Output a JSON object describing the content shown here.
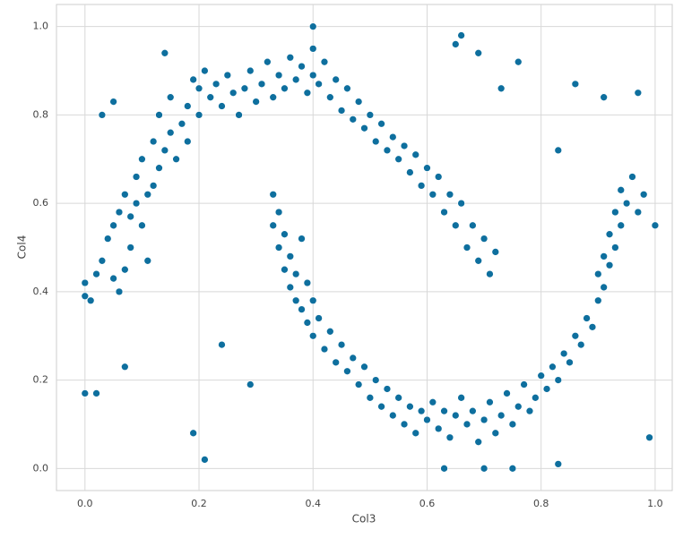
{
  "chart_data": {
    "type": "scatter",
    "x_label": "Col3",
    "y_label": "Col4",
    "color": "#0e6f9e",
    "grid": true,
    "xlim": [
      -0.05,
      1.03
    ],
    "ylim": [
      -0.05,
      1.05
    ],
    "xticks": [
      {
        "value": 0,
        "label": "0.0"
      },
      {
        "value": 0.2,
        "label": "0.2"
      },
      {
        "value": 0.4,
        "label": "0.4"
      },
      {
        "value": 0.6,
        "label": "0.6"
      },
      {
        "value": 0.8,
        "label": "0.8"
      },
      {
        "value": 1,
        "label": "1.0"
      }
    ],
    "yticks": [
      {
        "value": 0,
        "label": "0.0"
      },
      {
        "value": 0.2,
        "label": "0.2"
      },
      {
        "value": 0.4,
        "label": "0.4"
      },
      {
        "value": 0.6,
        "label": "0.6"
      },
      {
        "value": 0.8,
        "label": "0.8"
      },
      {
        "value": 1,
        "label": "1.0"
      }
    ],
    "x": [
      0.0,
      0.0,
      0.01,
      0.02,
      0.03,
      0.04,
      0.05,
      0.05,
      0.06,
      0.06,
      0.07,
      0.07,
      0.08,
      0.08,
      0.09,
      0.09,
      0.1,
      0.1,
      0.11,
      0.11,
      0.12,
      0.12,
      0.13,
      0.13,
      0.14,
      0.15,
      0.15,
      0.16,
      0.17,
      0.18,
      0.18,
      0.19,
      0.2,
      0.2,
      0.21,
      0.22,
      0.23,
      0.24,
      0.25,
      0.26,
      0.27,
      0.28,
      0.29,
      0.3,
      0.31,
      0.32,
      0.33,
      0.34,
      0.35,
      0.36,
      0.37,
      0.38,
      0.39,
      0.4,
      0.4,
      0.41,
      0.42,
      0.43,
      0.44,
      0.45,
      0.46,
      0.47,
      0.48,
      0.49,
      0.5,
      0.51,
      0.52,
      0.53,
      0.54,
      0.55,
      0.56,
      0.57,
      0.58,
      0.59,
      0.6,
      0.61,
      0.62,
      0.63,
      0.64,
      0.65,
      0.66,
      0.67,
      0.68,
      0.69,
      0.7,
      0.71,
      0.72,
      0.33,
      0.33,
      0.34,
      0.34,
      0.35,
      0.35,
      0.36,
      0.36,
      0.37,
      0.37,
      0.38,
      0.38,
      0.39,
      0.39,
      0.4,
      0.4,
      0.41,
      0.42,
      0.43,
      0.44,
      0.45,
      0.46,
      0.47,
      0.48,
      0.49,
      0.5,
      0.51,
      0.52,
      0.53,
      0.54,
      0.55,
      0.56,
      0.57,
      0.58,
      0.59,
      0.6,
      0.61,
      0.62,
      0.63,
      0.64,
      0.65,
      0.66,
      0.67,
      0.68,
      0.69,
      0.7,
      0.71,
      0.72,
      0.73,
      0.74,
      0.75,
      0.76,
      0.77,
      0.78,
      0.79,
      0.8,
      0.81,
      0.82,
      0.83,
      0.84,
      0.85,
      0.86,
      0.87,
      0.88,
      0.89,
      0.9,
      0.9,
      0.91,
      0.91,
      0.92,
      0.92,
      0.93,
      0.93,
      0.94,
      0.94,
      0.95,
      0.96,
      0.97,
      0.98,
      0.0,
      0.02,
      0.03,
      0.07,
      0.19,
      0.21,
      0.24,
      0.29,
      0.65,
      0.66,
      0.69,
      0.73,
      0.76,
      0.86,
      0.91,
      0.97,
      0.99,
      1.0,
      0.83,
      0.63,
      0.4,
      0.05,
      0.14,
      0.83,
      0.75,
      0.7
    ],
    "values": [
      0.39,
      0.42,
      0.38,
      0.44,
      0.47,
      0.52,
      0.55,
      0.43,
      0.4,
      0.58,
      0.45,
      0.62,
      0.5,
      0.57,
      0.6,
      0.66,
      0.55,
      0.7,
      0.62,
      0.47,
      0.64,
      0.74,
      0.68,
      0.8,
      0.72,
      0.76,
      0.84,
      0.7,
      0.78,
      0.82,
      0.74,
      0.88,
      0.8,
      0.86,
      0.9,
      0.84,
      0.87,
      0.82,
      0.89,
      0.85,
      0.8,
      0.86,
      0.9,
      0.83,
      0.87,
      0.92,
      0.84,
      0.89,
      0.86,
      0.93,
      0.88,
      0.91,
      0.85,
      0.95,
      0.89,
      0.87,
      0.92,
      0.84,
      0.88,
      0.81,
      0.86,
      0.79,
      0.83,
      0.77,
      0.8,
      0.74,
      0.78,
      0.72,
      0.75,
      0.7,
      0.73,
      0.67,
      0.71,
      0.64,
      0.68,
      0.62,
      0.66,
      0.58,
      0.62,
      0.55,
      0.6,
      0.5,
      0.55,
      0.47,
      0.52,
      0.44,
      0.49,
      0.62,
      0.55,
      0.58,
      0.5,
      0.53,
      0.45,
      0.48,
      0.41,
      0.44,
      0.38,
      0.52,
      0.36,
      0.42,
      0.33,
      0.38,
      0.3,
      0.34,
      0.27,
      0.31,
      0.24,
      0.28,
      0.22,
      0.25,
      0.19,
      0.23,
      0.16,
      0.2,
      0.14,
      0.18,
      0.12,
      0.16,
      0.1,
      0.14,
      0.08,
      0.13,
      0.11,
      0.15,
      0.09,
      0.13,
      0.07,
      0.12,
      0.16,
      0.1,
      0.13,
      0.06,
      0.11,
      0.15,
      0.08,
      0.12,
      0.17,
      0.1,
      0.14,
      0.19,
      0.13,
      0.16,
      0.21,
      0.18,
      0.23,
      0.2,
      0.26,
      0.24,
      0.3,
      0.28,
      0.34,
      0.32,
      0.38,
      0.44,
      0.41,
      0.48,
      0.46,
      0.53,
      0.5,
      0.58,
      0.55,
      0.63,
      0.6,
      0.66,
      0.58,
      0.62,
      0.17,
      0.17,
      0.8,
      0.23,
      0.08,
      0.02,
      0.28,
      0.19,
      0.96,
      0.98,
      0.94,
      0.86,
      0.92,
      0.87,
      0.84,
      0.85,
      0.07,
      0.55,
      0.01,
      0.0,
      1.0,
      0.83,
      0.94,
      0.72,
      0.0,
      0.0
    ]
  }
}
